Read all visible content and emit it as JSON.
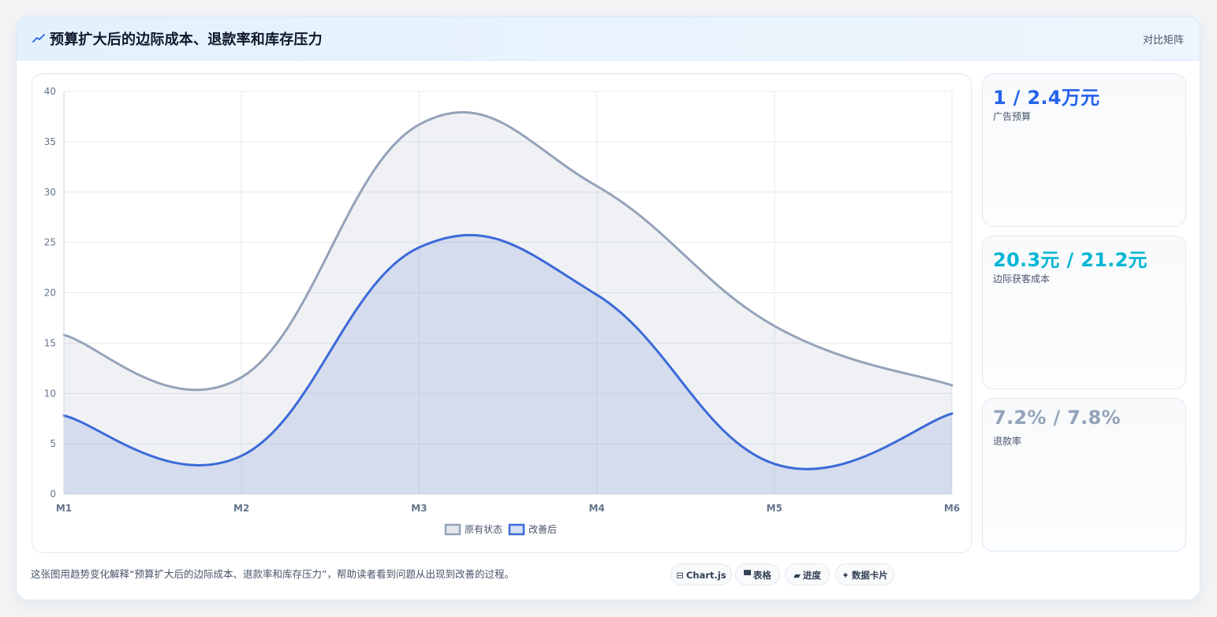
{
  "header": {
    "title": "预算扩大后的边际成本、退款率和库存压力",
    "link": "对比矩阵",
    "icon": "trend-icon"
  },
  "stats": [
    {
      "value": "1 / 2.4万元",
      "label": "广告预算",
      "color": "#2563eb"
    },
    {
      "value": "20.3元 / 21.2元",
      "label": "边际获客成本",
      "color": "#06b6d4"
    },
    {
      "value": "7.2% / 7.8%",
      "label": "退款率",
      "color": "#94a3b8"
    }
  ],
  "footer": {
    "caption": "这张图用趋势变化解释“预算扩大后的边际成本、退款率和库存压力”，帮助读者看到问题从出现到改善的过程。",
    "chips": [
      {
        "icon": "⊟",
        "label": "Chart.js"
      },
      {
        "icon": "▀",
        "label": "表格"
      },
      {
        "icon": "▰",
        "label": "进度"
      },
      {
        "icon": "✦",
        "label": "数据卡片"
      }
    ]
  },
  "chart_data": {
    "type": "area",
    "x": [
      "M1",
      "M2",
      "M3",
      "M4",
      "M5",
      "M6"
    ],
    "series": [
      {
        "name": "原有状态",
        "values": [
          15.8,
          11.6,
          36.7,
          30.6,
          16.7,
          10.8
        ],
        "color": "#94a3b8",
        "fill": "rgba(148,163,184,0.15)"
      },
      {
        "name": "改善后",
        "values": [
          7.8,
          3.8,
          24.5,
          19.8,
          3.0,
          8.0
        ],
        "color": "#3b6ad8",
        "fill": "rgba(96,130,210,0.18)"
      }
    ],
    "ylim": [
      0,
      40
    ],
    "yticks": [
      0,
      5,
      10,
      15,
      20,
      25,
      30,
      35,
      40
    ],
    "grid": true,
    "legend": "bottom-center"
  }
}
